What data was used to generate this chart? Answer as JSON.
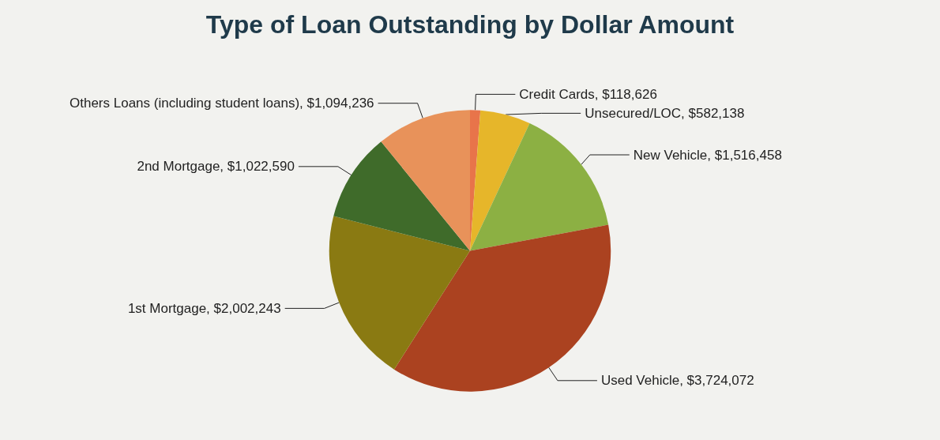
{
  "chart_data": {
    "type": "pie",
    "title": "Type of Loan Outstanding by Dollar Amount",
    "categories": [
      "Credit Cards",
      "Unsecured/LOC",
      "New Vehicle",
      "Used Vehicle",
      "1st Mortgage",
      "2nd Mortgage",
      "Others Loans (including student loans)"
    ],
    "values": [
      118626,
      582138,
      1516458,
      3724072,
      2002243,
      1022590,
      1094236
    ],
    "value_labels": [
      "$118,626",
      "$582,138",
      "$1,516,458",
      "$3,724,072",
      "$2,002,243",
      "$1,022,590",
      "$1,094,236"
    ],
    "colors": [
      "#e8744a",
      "#e6b62a",
      "#8cb043",
      "#ab4220",
      "#8a7a12",
      "#3f6b2a",
      "#e8925a"
    ],
    "legend": false
  }
}
